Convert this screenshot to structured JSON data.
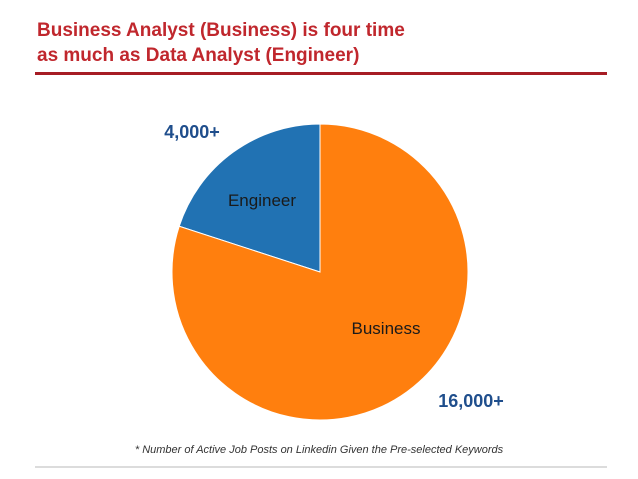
{
  "slide": {
    "title_line1": "Business Analyst (Business) is four time",
    "title_line2": "as much as Data Analyst (Engineer)",
    "footnote": "* Number of Active Job Posts on Linkedin Given the Pre-selected Keywords"
  },
  "chart_data": {
    "type": "pie",
    "title": "",
    "slices": [
      {
        "label": "Engineer",
        "value": 4000,
        "value_label": "4,000+",
        "color": "#2172b3"
      },
      {
        "label": "Business",
        "value": 16000,
        "value_label": "16,000+",
        "color": "#ff7f0e"
      }
    ],
    "value_label_color": "#1f4e8c",
    "legend": "none"
  }
}
